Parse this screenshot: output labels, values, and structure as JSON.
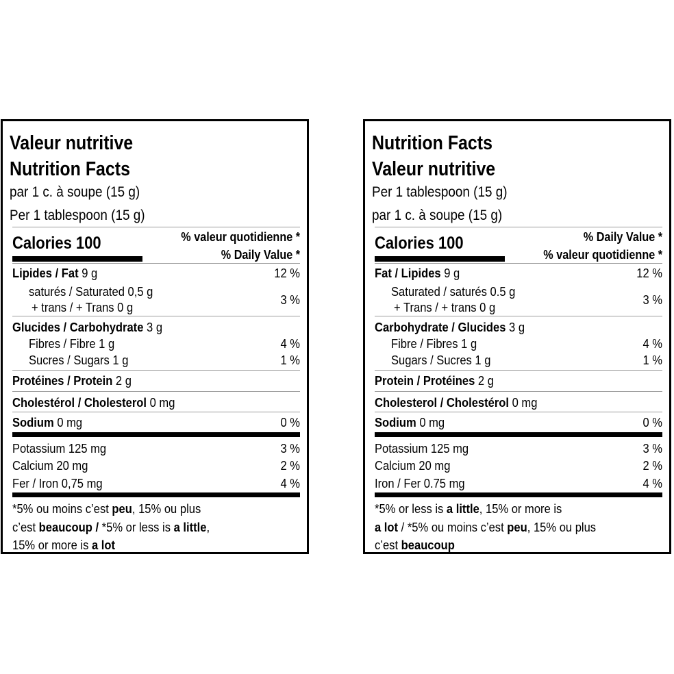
{
  "fr": {
    "title1": "Valeur nutritive",
    "title2": "Nutrition Facts",
    "serving1": "par 1 c. à soupe (15 g)",
    "serving2": "Per 1 tablespoon (15 g)",
    "calories": "Calories 100",
    "dv1": "% valeur quotidienne *",
    "dv2": "% Daily Value *",
    "fat_name": "Lipides / Fat",
    "fat_amt": " 9 g",
    "fat_pct": "12 %",
    "sat": "saturés / Saturated 0,5 g",
    "trans": "+ trans / + Trans 0 g",
    "sat_pct": "3 %",
    "carb_name": "Glucides / Carbohydrate",
    "carb_amt": " 3 g",
    "fibre": "Fibres / Fibre 1 g",
    "fibre_pct": "4 %",
    "sugars": "Sucres / Sugars 1 g",
    "sugars_pct": "1 %",
    "protein_name": "Protéines / Protein",
    "protein_amt": " 2 g",
    "chol_name": "Cholestérol / Cholesterol",
    "chol_amt": " 0 mg",
    "sodium_name": "Sodium",
    "sodium_amt": " 0 mg",
    "sodium_pct": "0 %",
    "potassium": "Potassium 125 mg",
    "potassium_pct": "3 %",
    "calcium": "Calcium 20 mg",
    "calcium_pct": "2 %",
    "iron": "Fer / Iron 0,75 mg",
    "iron_pct": "4 %",
    "foot1a": "*5% ou moins c’est ",
    "foot1b": "peu",
    "foot1c": ", 15% ou plus",
    "foot2a": "c’est ",
    "foot2b": "beaucoup /",
    "foot2c": " *5% or less is ",
    "foot2d": "a little",
    "foot2e": ",",
    "foot3a": "15% or more is ",
    "foot3b": "a lot"
  },
  "en": {
    "title1": "Nutrition Facts",
    "title2": "Valeur nutritive",
    "serving1": "Per 1 tablespoon (15 g)",
    "serving2": "par 1 c. à soupe (15 g)",
    "calories": "Calories 100",
    "dv1": "% Daily Value *",
    "dv2": "% valeur quotidienne *",
    "fat_name": "Fat / Lipides",
    "fat_amt": " 9 g",
    "fat_pct": "12 %",
    "sat": "Saturated / saturés 0.5 g",
    "trans": "+ Trans / + trans 0 g",
    "sat_pct": "3 %",
    "carb_name": "Carbohydrate / Glucides",
    "carb_amt": " 3 g",
    "fibre": "Fibre / Fibres 1 g",
    "fibre_pct": "4 %",
    "sugars": "Sugars / Sucres 1 g",
    "sugars_pct": "1 %",
    "protein_name": "Protein / Protéines",
    "protein_amt": " 2 g",
    "chol_name": "Cholesterol / Cholestérol",
    "chol_amt": " 0 mg",
    "sodium_name": "Sodium",
    "sodium_amt": " 0 mg",
    "sodium_pct": "0 %",
    "potassium": "Potassium 125 mg",
    "potassium_pct": "3 %",
    "calcium": "Calcium 20 mg",
    "calcium_pct": "2 %",
    "iron": "Iron / Fer 0.75 mg",
    "iron_pct": "4 %",
    "foot1a": "*5% or less is ",
    "foot1b": "a little",
    "foot1c": ", 15% or more is",
    "foot2a": " ",
    "foot2b": "a lot",
    "foot2c": " / *5% ou moins c’est ",
    "foot2d": "peu",
    "foot2e": ", 15% ou plus",
    "foot3a": "c’est ",
    "foot3b": "beaucoup"
  }
}
